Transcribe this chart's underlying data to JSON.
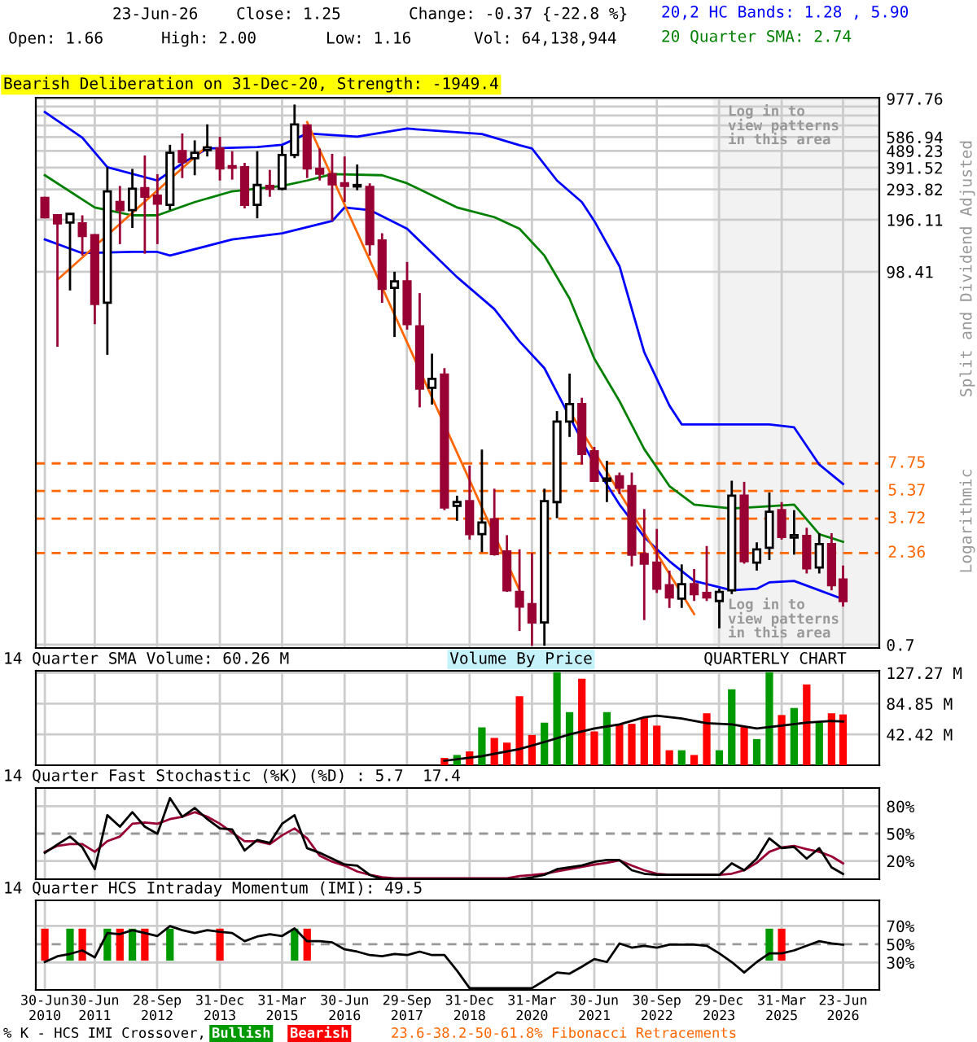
{
  "chart_data": [
    {
      "type": "candlestick",
      "title": "Bearish Deliberation on 31-Dec-20, Strength: -1949.4",
      "x": [
        "2010-06-30",
        "2010-09-30",
        "2010-12-31",
        "2011-03-31",
        "2011-06-30",
        "2011-09-30",
        "2011-12-31",
        "2012-03-31",
        "2012-06-30",
        "2012-09-30",
        "2012-12-31",
        "2013-03-31",
        "2013-06-30",
        "2013-09-30",
        "2013-12-31",
        "2014-03-31",
        "2014-06-30",
        "2014-09-30",
        "2014-12-31",
        "2015-03-31",
        "2015-06-30",
        "2015-09-30",
        "2015-12-31",
        "2016-03-31",
        "2016-06-30",
        "2016-09-30",
        "2016-12-31",
        "2017-03-31",
        "2017-06-30",
        "2017-09-30",
        "2017-12-31",
        "2018-03-31",
        "2018-06-30",
        "2018-09-30",
        "2018-12-31",
        "2019-03-31",
        "2019-06-30",
        "2019-09-30",
        "2019-12-31",
        "2020-03-31",
        "2020-06-30",
        "2020-09-30",
        "2020-12-31",
        "2021-03-31",
        "2021-06-30",
        "2021-09-30",
        "2021-12-31",
        "2022-03-31",
        "2022-06-30",
        "2022-09-30",
        "2022-12-31",
        "2023-03-31",
        "2023-06-30",
        "2023-09-30",
        "2023-12-31",
        "2024-03-31",
        "2024-06-30",
        "2024-09-30",
        "2024-12-31",
        "2025-03-31",
        "2025-06-30",
        "2025-09-30",
        "2025-12-31",
        "2026-03-31",
        "2026-06-23"
      ],
      "ohlc": [
        [
          262,
          266,
          200,
          203
        ],
        [
          208,
          210,
          36.4,
          187
        ],
        [
          189,
          214,
          76.8,
          212
        ],
        [
          187,
          208,
          122,
          158
        ],
        [
          160,
          162,
          49.1,
          64.3
        ],
        [
          65.2,
          394,
          32.7,
          286
        ],
        [
          248,
          307,
          142,
          223
        ],
        [
          223,
          385,
          176,
          296
        ],
        [
          298,
          460,
          125,
          266
        ],
        [
          270,
          359,
          142,
          243
        ],
        [
          239,
          530,
          223,
          477
        ],
        [
          487,
          616,
          341,
          423
        ],
        [
          444,
          562,
          354,
          477
        ],
        [
          494,
          695,
          454,
          512
        ],
        [
          505,
          590,
          330,
          388
        ],
        [
          399,
          487,
          334,
          391
        ],
        [
          394,
          417,
          228,
          239
        ],
        [
          239,
          487,
          200,
          311
        ],
        [
          307,
          380,
          266,
          296
        ],
        [
          296,
          523,
          290,
          463
        ],
        [
          463,
          904,
          444,
          695
        ],
        [
          685,
          695,
          341,
          388
        ],
        [
          385,
          505,
          330,
          361
        ],
        [
          359,
          470,
          193,
          314
        ],
        [
          318,
          454,
          248,
          307
        ],
        [
          305,
          408,
          290,
          311
        ],
        [
          303,
          318,
          122,
          142
        ],
        [
          149,
          164,
          65.2,
          78.4
        ],
        [
          79.5,
          98.4,
          41.4,
          86.6
        ],
        [
          86.6,
          112,
          45.7,
          49.1
        ],
        [
          47.7,
          74.1,
          16.3,
          20.9
        ],
        [
          21.1,
          33.2,
          16.9,
          23.8
        ],
        [
          25.2,
          27.4,
          4.17,
          4.32
        ],
        [
          4.41,
          5.05,
          3.62,
          4.64
        ],
        [
          4.7,
          7.52,
          2.82,
          3.03
        ],
        [
          3.03,
          9.31,
          2.39,
          3.54
        ],
        [
          3.69,
          5.54,
          2.28,
          2.33
        ],
        [
          2.41,
          2.99,
          1.41,
          1.44
        ],
        [
          1.41,
          2.48,
          0.84,
          1.16
        ],
        [
          1.2,
          2.36,
          0.69,
          0.94
        ],
        [
          0.94,
          5.54,
          0.69,
          4.7
        ],
        [
          4.64,
          15.5,
          3.75,
          13.5
        ],
        [
          13.5,
          25.5,
          11.0,
          17.0
        ],
        [
          17.0,
          18.5,
          7.63,
          8.79
        ],
        [
          9.1,
          9.64,
          6.1,
          6.16
        ],
        [
          6.16,
          8.02,
          4.64,
          6.34
        ],
        [
          6.52,
          6.86,
          5.16,
          5.62
        ],
        [
          5.74,
          6.86,
          1.98,
          2.31
        ],
        [
          2.33,
          4.23,
          0.97,
          2.05
        ],
        [
          2.08,
          3.25,
          1.39,
          1.47
        ],
        [
          1.54,
          1.87,
          1.14,
          1.31
        ],
        [
          1.29,
          2.03,
          1.14,
          1.56
        ],
        [
          1.56,
          1.91,
          1.25,
          1.37
        ],
        [
          1.39,
          2.59,
          1.25,
          1.31
        ],
        [
          1.25,
          1.47,
          0.87,
          1.41
        ],
        [
          1.44,
          6.16,
          1.37,
          5.05
        ],
        [
          5.05,
          6.07,
          2.05,
          2.12
        ],
        [
          2.08,
          2.72,
          1.87,
          2.48
        ],
        [
          2.53,
          5.27,
          2.15,
          4.08
        ],
        [
          4.17,
          4.64,
          2.82,
          2.92
        ],
        [
          2.9,
          4.17,
          2.31,
          2.99
        ],
        [
          2.96,
          3.3,
          1.8,
          1.93
        ],
        [
          1.95,
          3.07,
          1.8,
          2.66
        ],
        [
          2.66,
          3.07,
          1.44,
          1.54
        ],
        [
          1.66,
          2.0,
          1.16,
          1.25
        ]
      ],
      "series": [
        {
          "type": "line",
          "name": "20,2 HC Bands: 1.28 , 5.90",
          "color": "#0000ff",
          "x": [
            "2010-06-30",
            "2011-03-31",
            "2011-09-30",
            "2012-09-30",
            "2013-03-31",
            "2013-09-30",
            "2014-09-30",
            "2015-03-31",
            "2015-09-30",
            "2016-09-30",
            "2017-09-30",
            "2019-03-31",
            "2019-06-30",
            "2019-12-31",
            "2020-03-31",
            "2020-09-30",
            "2021-03-31",
            "2021-06-30",
            "2021-12-31",
            "2022-06-30",
            "2022-12-31",
            "2023-03-31",
            "2024-03-31",
            "2024-12-31",
            "2025-06-30",
            "2025-12-31",
            "2026-06-23"
          ],
          "values": [
            818,
            582,
            394,
            330,
            414,
            505,
            515,
            530,
            616,
            590,
            657,
            611,
            582,
            527,
            505,
            330,
            248,
            193,
            106,
            33.9,
            16.7,
            13.0,
            13.0,
            13.0,
            12.5,
            7.63,
            5.9
          ]
        },
        {
          "type": "line",
          "name": "20 Quarter SMA: 2.74",
          "color": "#008000",
          "x": [
            "2010-06-30",
            "2011-06-30",
            "2012-03-31",
            "2012-09-30",
            "2013-06-30",
            "2014-03-31",
            "2015-03-31",
            "2015-09-30",
            "2016-03-31",
            "2017-03-31",
            "2017-09-30",
            "2018-09-30",
            "2019-06-30",
            "2019-12-31",
            "2020-06-30",
            "2020-12-31",
            "2021-06-30",
            "2021-12-31",
            "2022-06-30",
            "2022-12-31",
            "2023-06-30",
            "2024-03-31",
            "2024-12-31",
            "2025-06-30",
            "2025-12-31",
            "2026-06-23"
          ],
          "values": [
            354,
            231,
            208,
            208,
            248,
            286,
            307,
            330,
            359,
            354,
            318,
            231,
            203,
            174,
            122,
            69.0,
            31.1,
            17.7,
            9.37,
            5.74,
            4.49,
            4.26,
            4.39,
            4.49,
            3.03,
            2.74
          ]
        },
        {
          "type": "line",
          "color": "#0000ff",
          "x": [
            "2010-06-30",
            "2011-03-31",
            "2012-03-31",
            "2012-09-30",
            "2012-12-31",
            "2014-03-31",
            "2015-03-31",
            "2016-03-31",
            "2016-06-30",
            "2016-12-31",
            "2017-09-30",
            "2018-09-30",
            "2019-06-30",
            "2019-12-31",
            "2020-06-30",
            "2020-12-31",
            "2021-06-30",
            "2021-12-31",
            "2022-06-30",
            "2022-12-31",
            "2023-06-30",
            "2024-03-31",
            "2024-09-30",
            "2024-12-31",
            "2025-06-30",
            "2025-12-31",
            "2026-06-23"
          ],
          "values": [
            151,
            126,
            128,
            128,
            122,
            151,
            164,
            193,
            231,
            223,
            174,
            91.7,
            60,
            39.1,
            27.4,
            14.4,
            7.63,
            4.49,
            2.92,
            2.12,
            1.63,
            1.44,
            1.47,
            1.6,
            1.63,
            1.44,
            1.28
          ]
        },
        {
          "type": "line",
          "color": "#ff6600",
          "x": [
            "2010-09-30",
            "2013-09-30"
          ],
          "values": [
            88.5,
            523
          ]
        },
        {
          "type": "line",
          "color": "#ff6600",
          "x": [
            "2015-09-30",
            "2019-12-31"
          ],
          "values": [
            716,
            1.44
          ]
        },
        {
          "type": "line",
          "color": "#ff6600",
          "x": [
            "2020-12-31",
            "2023-06-30"
          ],
          "values": [
            15.5,
            1.05
          ]
        }
      ],
      "ref_lines": [
        {
          "axis": "y",
          "value": 7.75,
          "label": "7.75",
          "color": "#ff6600",
          "line_style": "dashed"
        },
        {
          "axis": "y",
          "value": 5.37,
          "label": "5.37",
          "color": "#ff6600",
          "line_style": "dashed"
        },
        {
          "axis": "y",
          "value": 3.72,
          "label": "3.72",
          "color": "#ff6600",
          "line_style": "dashed"
        },
        {
          "axis": "y",
          "value": 2.36,
          "label": "2.36",
          "color": "#ff6600",
          "line_style": "dashed"
        }
      ],
      "bands": [
        {
          "axis": "x",
          "from": "2023-11-15",
          "to": "2027-03-15",
          "color": "#f2f2f2"
        }
      ],
      "annotations": [
        "23-Jun-26",
        "Close: 1.25",
        "Change: -0.37 {-22.8 %}",
        "Open: 1.66",
        "High: 2.00",
        "Low: 1.16",
        "Vol: 64,138,944",
        "Log in to\nview patterns\nin this area",
        "Log in to\nview patterns\nin this area",
        "Split and Dividend Adjusted",
        "Logarithmic",
        "23.6-38.2-50-61.8% Fibonacci Retracements"
      ],
      "log": "y",
      "xlim": [
        "2010-04-25",
        "2027-03-15"
      ],
      "ylim": [
        0.67,
        990
      ],
      "yticks": [
        977.76,
        {
          "value": 880.05,
          "label": null
        },
        {
          "value": 782.35,
          "label": null
        },
        {
          "value": 684.64,
          "label": null
        },
        586.94,
        489.23,
        391.52,
        293.82,
        196.11,
        98.41,
        0.7
      ],
      "xticks": [
        {
          "value": "2010-06-30",
          "label": null
        },
        {
          "value": "2011-06-30",
          "label": null
        },
        {
          "value": "2012-09-28",
          "label": null
        },
        {
          "value": "2013-12-31",
          "label": null
        },
        {
          "value": "2015-03-31",
          "label": null
        },
        {
          "value": "2016-06-30",
          "label": null
        },
        {
          "value": "2017-09-29",
          "label": null
        },
        {
          "value": "2018-12-31",
          "label": null
        },
        {
          "value": "2020-03-31",
          "label": null
        },
        {
          "value": "2021-06-30",
          "label": null
        },
        {
          "value": "2022-09-30",
          "label": null
        },
        {
          "value": "2023-12-29",
          "label": null
        },
        {
          "value": "2025-03-31",
          "label": null
        },
        {
          "value": "2026-06-23",
          "label": null
        }
      ],
      "grid": true,
      "legend": "top right",
      "tick_labels": "y"
    },
    {
      "type": "bar",
      "title": "14 Quarter SMA Volume: 60.26 M",
      "annotations": [
        "Volume By Price",
        "QUARTERLY CHART"
      ],
      "series": [
        {
          "x": [
            "2018-06-30",
            "2018-09-30",
            "2018-12-31",
            "2019-03-31",
            "2019-06-30",
            "2019-09-30",
            "2019-12-31",
            "2020-03-31",
            "2020-06-30",
            "2020-09-30",
            "2020-12-31",
            "2021-03-31",
            "2021-06-30",
            "2021-09-30",
            "2021-12-31",
            "2022-03-31",
            "2022-06-30",
            "2022-09-30",
            "2022-12-31",
            "2023-03-31",
            "2023-06-30",
            "2023-09-30",
            "2023-12-31",
            "2024-03-31",
            "2024-06-30",
            "2024-09-30",
            "2024-12-31",
            "2025-03-31",
            "2025-06-30",
            "2025-09-30",
            "2025-12-31",
            "2026-03-31",
            "2026-06-23"
          ],
          "values": [
            10.1,
            14.1,
            19.0,
            52.1,
            37.6,
            31.1,
            95.0,
            41.6,
            58.6,
            128,
            73.1,
            119.2,
            46.5,
            73.1,
            57.0,
            57.0,
            65.9,
            54.5,
            20.6,
            20.6,
            14.1,
            71.5,
            20.6,
            104.6,
            52.9,
            36.0,
            128,
            69.1,
            78.8,
            111.1,
            58.6,
            71.5,
            69.9
          ],
          "colors": [
            "#ff0000",
            "#009900",
            "#ff0000",
            "#009900",
            "#ff0000",
            "#ff0000",
            "#ff0000",
            "#ff0000",
            "#009900",
            "#009900",
            "#009900",
            "#ff0000",
            "#ff0000",
            "#009900",
            "#ff0000",
            "#ff0000",
            "#ff0000",
            "#ff0000",
            "#ff0000",
            "#009900",
            "#ff0000",
            "#ff0000",
            "#009900",
            "#009900",
            "#ff0000",
            "#009900",
            "#009900",
            "#ff0000",
            "#009900",
            "#ff0000",
            "#009900",
            "#ff0000",
            "#ff0000"
          ]
        },
        {
          "type": "line",
          "color": "#000000",
          "x": [
            "2018-06-30",
            "2019-03-31",
            "2019-12-31",
            "2020-06-30",
            "2020-12-31",
            "2021-06-30",
            "2021-12-31",
            "2022-06-30",
            "2022-09-30",
            "2023-03-31",
            "2023-09-30",
            "2024-03-31",
            "2024-09-30",
            "2025-03-31",
            "2025-09-30",
            "2026-03-31",
            "2026-06-23"
          ],
          "values": [
            6.1,
            12.5,
            22.2,
            31.9,
            42.4,
            50.5,
            56.2,
            65.9,
            68.3,
            64.2,
            57.8,
            56.2,
            50.5,
            54.5,
            58.6,
            61.0,
            60.26
          ]
        }
      ],
      "xlim": [
        "2010-04-25",
        "2027-03-15"
      ],
      "ylim": [
        0,
        130
      ],
      "yticks": [
        {
          "value": 127.27,
          "label": "127.27 M"
        },
        {
          "value": 84.85,
          "label": "84.85 M"
        },
        {
          "value": 42.42,
          "label": "42.42 M"
        }
      ],
      "xticks": [
        {
          "value": "2010-06-30",
          "label": null
        },
        {
          "value": "2011-06-30",
          "label": null
        },
        {
          "value": "2012-09-28",
          "label": null
        },
        {
          "value": "2013-12-31",
          "label": null
        },
        {
          "value": "2015-03-31",
          "label": null
        },
        {
          "value": "2016-06-30",
          "label": null
        },
        {
          "value": "2017-09-29",
          "label": null
        },
        {
          "value": "2018-12-31",
          "label": null
        },
        {
          "value": "2020-03-31",
          "label": null
        },
        {
          "value": "2021-06-30",
          "label": null
        },
        {
          "value": "2022-09-30",
          "label": null
        },
        {
          "value": "2023-12-29",
          "label": null
        },
        {
          "value": "2025-03-31",
          "label": null
        },
        {
          "value": "2026-06-23",
          "label": null
        }
      ],
      "grid": true,
      "tick_labels": "y"
    },
    {
      "type": "line",
      "title": "14 Quarter Fast Stochastic (%K) (%D) : 5.7  17.4",
      "x": [
        "2010-06-30",
        "2010-09-30",
        "2010-12-31",
        "2011-03-31",
        "2011-06-30",
        "2011-09-30",
        "2011-12-31",
        "2012-03-31",
        "2012-06-30",
        "2012-09-30",
        "2012-12-31",
        "2013-03-31",
        "2013-06-30",
        "2013-09-30",
        "2013-12-31",
        "2014-03-31",
        "2014-06-30",
        "2014-09-30",
        "2014-12-31",
        "2015-03-31",
        "2015-06-30",
        "2015-09-30",
        "2015-12-31",
        "2016-03-31",
        "2016-06-30",
        "2016-09-30",
        "2016-12-31",
        "2017-03-31",
        "2017-06-30",
        "2017-09-30",
        "2017-12-31",
        "2018-03-31",
        "2018-06-30",
        "2018-09-30",
        "2018-12-31",
        "2019-03-31",
        "2019-06-30",
        "2019-09-30",
        "2019-12-31",
        "2020-03-31",
        "2020-06-30",
        "2020-09-30",
        "2020-12-31",
        "2021-03-31",
        "2021-06-30",
        "2021-09-30",
        "2021-12-31",
        "2022-03-31",
        "2022-06-30",
        "2022-09-30",
        "2022-12-31",
        "2023-03-31",
        "2023-06-30",
        "2023-09-30",
        "2023-12-31",
        "2024-03-31",
        "2024-06-30",
        "2024-09-30",
        "2024-12-31",
        "2025-03-31",
        "2025-06-30",
        "2025-09-30",
        "2025-12-31",
        "2026-03-31",
        "2026-06-23"
      ],
      "series": [
        {
          "color": "#990033",
          "values": [
            30,
            36.6,
            38.5,
            38.5,
            30,
            41.7,
            46.8,
            60.8,
            62.1,
            60.8,
            65.9,
            68.5,
            73.5,
            68.5,
            60.8,
            51.3,
            41.7,
            41.7,
            38.5,
            48.1,
            55.7,
            44.8,
            25.7,
            19.3,
            14.9,
            8.5,
            4.7,
            2.1,
            1,
            1,
            1,
            1,
            1,
            1,
            1,
            1,
            1,
            1,
            3.4,
            4.5,
            6,
            8.5,
            11,
            13.5,
            16,
            18,
            20.6,
            15,
            9.8,
            6,
            4.7,
            4.7,
            4.7,
            4.7,
            4.7,
            6,
            9.8,
            18,
            30,
            35,
            36.6,
            33,
            30,
            25,
            17.4
          ]
        },
        {
          "color": "#000000",
          "values": [
            28.9,
            38,
            46.8,
            35,
            11.0,
            70.2,
            57.6,
            73.5,
            57.6,
            49.8,
            88.9,
            68.5,
            78.1,
            65.9,
            55.7,
            54.5,
            31.5,
            43.0,
            39.8,
            60.8,
            70.2,
            34.0,
            28.9,
            22.5,
            16.1,
            14.9,
            4.7,
            0,
            0,
            0,
            0,
            0,
            0,
            0,
            0,
            0,
            0,
            0,
            0,
            2,
            4.7,
            11,
            13,
            15,
            19,
            21,
            21,
            9.8,
            6.0,
            4.7,
            4.7,
            4.7,
            4.7,
            4.7,
            4.7,
            17.4,
            9.8,
            22.5,
            44.8,
            34,
            35.3,
            22.5,
            34,
            13,
            5.7
          ]
        }
      ],
      "ref_lines": [
        {
          "axis": "y",
          "value": 50,
          "color": "#999999",
          "line_style": "dashed"
        }
      ],
      "xlim": [
        "2010-04-25",
        "2027-03-15"
      ],
      "ylim": [
        0,
        100
      ],
      "yticks": [
        {
          "value": 80,
          "label": "80%"
        },
        {
          "value": 50,
          "label": "50%"
        },
        {
          "value": 20,
          "label": "20%"
        }
      ],
      "xticks": [
        {
          "value": "2010-06-30",
          "label": null
        },
        {
          "value": "2011-06-30",
          "label": null
        },
        {
          "value": "2012-09-28",
          "label": null
        },
        {
          "value": "2013-12-31",
          "label": null
        },
        {
          "value": "2015-03-31",
          "label": null
        },
        {
          "value": "2016-06-30",
          "label": null
        },
        {
          "value": "2017-09-29",
          "label": null
        },
        {
          "value": "2018-12-31",
          "label": null
        },
        {
          "value": "2020-03-31",
          "label": null
        },
        {
          "value": "2021-06-30",
          "label": null
        },
        {
          "value": "2022-09-30",
          "label": null
        },
        {
          "value": "2023-12-29",
          "label": null
        },
        {
          "value": "2025-03-31",
          "label": null
        },
        {
          "value": "2026-06-23",
          "label": null
        }
      ],
      "grid": true,
      "tick_labels": "y"
    },
    {
      "type": "line",
      "title": "14 Quarter HCS Intraday Momentum (IMI): 49.5",
      "legend_title": "% K - HCS IMI Crossover,",
      "x": [
        "2010-06-30",
        "2010-09-30",
        "2010-12-31",
        "2011-03-31",
        "2011-06-30",
        "2011-09-30",
        "2011-12-31",
        "2012-03-31",
        "2012-06-30",
        "2012-09-30",
        "2012-12-31",
        "2013-03-31",
        "2013-06-30",
        "2013-09-30",
        "2013-12-31",
        "2014-03-31",
        "2014-06-30",
        "2014-09-30",
        "2014-12-31",
        "2015-03-31",
        "2015-06-30",
        "2015-09-30",
        "2015-12-31",
        "2016-03-31",
        "2016-06-30",
        "2016-09-30",
        "2016-12-31",
        "2017-03-31",
        "2017-06-30",
        "2017-09-30",
        "2017-12-31",
        "2018-03-31",
        "2018-06-30",
        "2018-09-30",
        "2018-12-31",
        "2019-03-31",
        "2019-06-30",
        "2019-09-30",
        "2019-12-31",
        "2020-03-31",
        "2020-06-30",
        "2020-09-30",
        "2020-12-31",
        "2021-03-31",
        "2021-06-30",
        "2021-09-30",
        "2021-12-31",
        "2022-03-31",
        "2022-06-30",
        "2022-09-30",
        "2022-12-31",
        "2023-03-31",
        "2023-06-30",
        "2023-09-30",
        "2023-12-31",
        "2024-03-31",
        "2024-06-30",
        "2024-09-30",
        "2024-12-31",
        "2025-03-31",
        "2025-06-30",
        "2025-09-30",
        "2025-12-31",
        "2026-03-31",
        "2026-06-23"
      ],
      "series": [
        {
          "type": "bar",
          "name": "Bullish",
          "color": "#009900",
          "x": [
            "2010-12-31",
            "2011-09-30",
            "2012-03-31",
            "2012-12-31",
            "2015-06-30",
            "2024-12-31"
          ],
          "values": [
            35,
            35,
            35,
            35,
            35,
            35
          ],
          "base": [
            32,
            32,
            32,
            32,
            32,
            32
          ]
        },
        {
          "type": "bar",
          "name": "Bearish",
          "color": "#ff0000",
          "x": [
            "2010-06-30",
            "2011-03-31",
            "2011-12-31",
            "2012-06-30",
            "2013-12-31",
            "2015-09-30",
            "2025-03-31"
          ],
          "values": [
            35,
            35,
            35,
            35,
            35,
            35,
            35
          ],
          "base": [
            32,
            32,
            32,
            32,
            32,
            32,
            32
          ]
        },
        {
          "color": "#000000",
          "values": [
            30.5,
            36.8,
            39.4,
            43.2,
            35.6,
            62.2,
            61,
            65.4,
            62.2,
            59,
            69.8,
            65.4,
            62.2,
            65.4,
            63.5,
            62.2,
            53.3,
            58.4,
            61,
            59,
            67.3,
            53.3,
            53.3,
            52,
            44.4,
            41.9,
            38.1,
            36.8,
            39.4,
            38.1,
            41.9,
            38.1,
            38.1,
            21,
            1.9,
            1.9,
            1.9,
            1.9,
            1.9,
            1.9,
            10.2,
            19,
            17.8,
            25.4,
            33.7,
            30.5,
            50.8,
            46.3,
            48.3,
            46.3,
            49.5,
            49.5,
            49.5,
            48.3,
            40,
            30.5,
            19,
            30.5,
            40,
            40,
            43.2,
            48.3,
            53.3,
            50.8,
            49.5
          ]
        }
      ],
      "ref_lines": [
        {
          "axis": "y",
          "value": 50,
          "color": "#999999",
          "line_style": "dashed"
        }
      ],
      "xlim": [
        "2010-04-25",
        "2027-03-15"
      ],
      "ylim": [
        0,
        98
      ],
      "yticks": [
        {
          "value": 70,
          "label": "70%"
        },
        {
          "value": 50,
          "label": "50%"
        },
        {
          "value": 30,
          "label": "30%"
        }
      ],
      "xticks": [
        {
          "value": "2010-06-30",
          "label": "30-Jun\n2010"
        },
        {
          "value": "2011-06-30",
          "label": "30-Jun\n2011"
        },
        {
          "value": "2012-09-28",
          "label": "28-Sep\n2012"
        },
        {
          "value": "2013-12-31",
          "label": "31-Dec\n2013"
        },
        {
          "value": "2015-03-31",
          "label": "31-Mar\n2015"
        },
        {
          "value": "2016-06-30",
          "label": "30-Jun\n2016"
        },
        {
          "value": "2017-09-29",
          "label": "29-Sep\n2017"
        },
        {
          "value": "2018-12-31",
          "label": "31-Dec\n2018"
        },
        {
          "value": "2020-03-31",
          "label": "31-Mar\n2020"
        },
        {
          "value": "2021-06-30",
          "label": "30-Jun\n2021"
        },
        {
          "value": "2022-09-30",
          "label": "30-Sep\n2022"
        },
        {
          "value": "2023-12-29",
          "label": "29-Dec\n2023"
        },
        {
          "value": "2025-03-31",
          "label": "31-Mar\n2025"
        },
        {
          "value": "2026-06-23",
          "label": "23-Jun\n2026"
        }
      ],
      "grid": true,
      "legend": "bottom"
    }
  ]
}
